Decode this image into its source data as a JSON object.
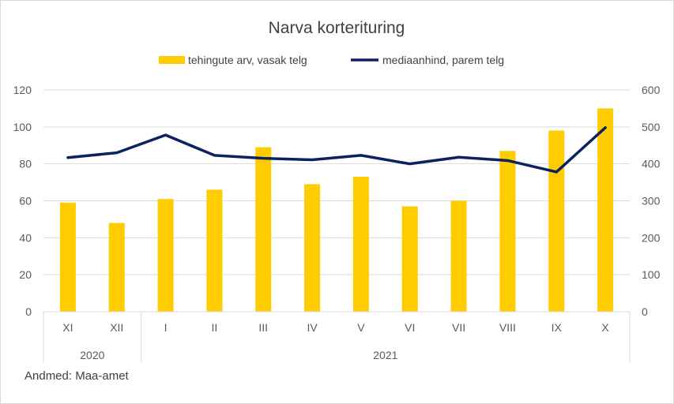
{
  "source_note": "Andmed: Maa-amet",
  "chart_data": {
    "type": "bar",
    "title": "Narva korterituring",
    "categories": [
      "XI",
      "XII",
      "I",
      "II",
      "III",
      "IV",
      "V",
      "VI",
      "VII",
      "VIII",
      "IX",
      "X"
    ],
    "year_groups": [
      {
        "label": "2020",
        "count": 2
      },
      {
        "label": "2021",
        "count": 10
      }
    ],
    "series": [
      {
        "name": "tehingute arv, vasak telg",
        "type": "bar",
        "axis": "left",
        "color": "#FFCC00",
        "values": [
          59,
          48,
          61,
          66,
          89,
          69,
          73,
          57,
          60,
          87,
          98,
          110
        ]
      },
      {
        "name": "mediaanhind, parem telg",
        "type": "line",
        "axis": "right",
        "color": "#0B2260",
        "values": [
          417,
          430,
          478,
          423,
          415,
          411,
          423,
          400,
          418,
          409,
          378,
          498
        ]
      }
    ],
    "left_axis": {
      "ylim": [
        0,
        120
      ],
      "ticks": [
        "0",
        "20",
        "40",
        "60",
        "80",
        "100",
        "120"
      ]
    },
    "right_axis": {
      "ylim": [
        0,
        600
      ],
      "ticks": [
        "0",
        "100",
        "200",
        "300",
        "400",
        "500",
        "600"
      ]
    },
    "grid": true,
    "legend_position": "top"
  }
}
